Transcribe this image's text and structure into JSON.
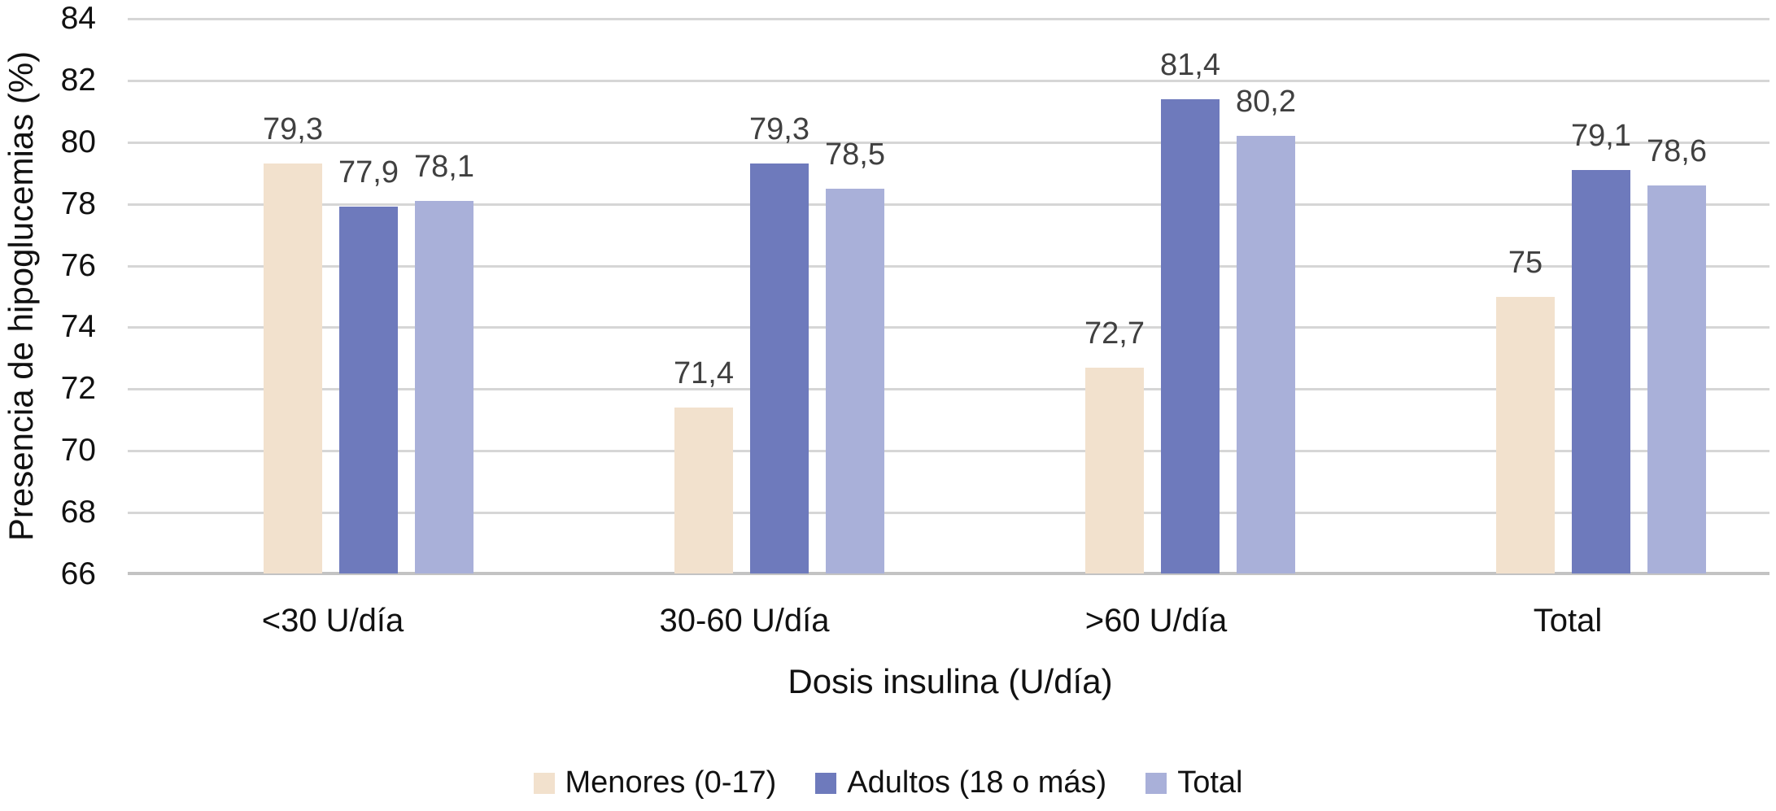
{
  "chart_data": {
    "type": "bar",
    "title": "",
    "categories": [
      "<30 U/día",
      "30-60 U/día",
      ">60 U/día",
      "Total"
    ],
    "series": [
      {
        "name": "Menores (0-17)",
        "color": "#f2e1cd",
        "values": [
          79.3,
          71.4,
          72.7,
          75
        ],
        "labels": [
          "79,3",
          "71,4",
          "72,7",
          "75"
        ]
      },
      {
        "name": "Adultos (18 o más)",
        "color": "#6e7abc",
        "values": [
          77.9,
          79.3,
          81.4,
          79.1
        ],
        "labels": [
          "77,9",
          "79,3",
          "81,4",
          "79,1"
        ]
      },
      {
        "name": "Total",
        "color": "#a9b0d9",
        "values": [
          78.1,
          78.5,
          80.2,
          78.6
        ],
        "labels": [
          "78,1",
          "78,5",
          "80,2",
          "78,6"
        ]
      }
    ],
    "xlabel": "Dosis insulina (U/día)",
    "ylabel": "Presencia de hipoglucemias (%)",
    "ylim": [
      66,
      84
    ],
    "yticks": [
      66,
      68,
      70,
      72,
      74,
      76,
      78,
      80,
      82,
      84
    ],
    "grid": true,
    "legend_position": "bottom",
    "legend": [
      "Menores (0-17)",
      "Adultos (18 o más)",
      "Total"
    ],
    "colors": {
      "gridline": "#d6d6d6",
      "axis_line": "#c3c3c3",
      "value_label": "#404040",
      "text": "#111111"
    }
  }
}
